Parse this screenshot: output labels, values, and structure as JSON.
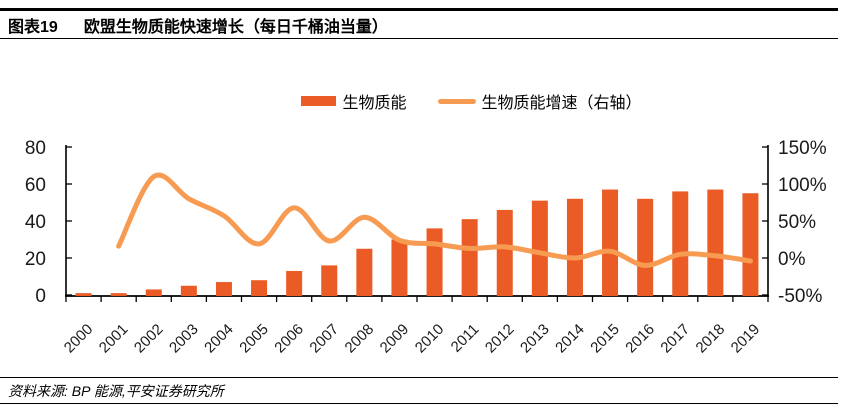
{
  "header": {
    "tag": "图表19",
    "title": "欧盟生物质能快速增长（每日千桶油当量）"
  },
  "legend": {
    "items": [
      {
        "label": "生物质能",
        "swatch": "bar-swatch"
      },
      {
        "label": "生物质能增速（右轴）",
        "swatch": "line-swatch"
      }
    ]
  },
  "colors": {
    "bar": "#EA5B25",
    "line": "#F89B52",
    "axis": "#000000",
    "text": "#1A1A1A"
  },
  "chart_data": {
    "type": "bar",
    "title": "欧盟生物质能快速增长（每日千桶油当量）",
    "categories": [
      "2000",
      "2001",
      "2002",
      "2003",
      "2004",
      "2005",
      "2006",
      "2007",
      "2008",
      "2009",
      "2010",
      "2011",
      "2012",
      "2013",
      "2014",
      "2015",
      "2016",
      "2017",
      "2018",
      "2019"
    ],
    "series": [
      {
        "name": "生物质能",
        "type": "bar",
        "axis": "left",
        "values": [
          1,
          1,
          3,
          5,
          7,
          8,
          13,
          16,
          25,
          30,
          36,
          41,
          46,
          51,
          52,
          57,
          52,
          56,
          57,
          55
        ]
      },
      {
        "name": "生物质能增速（右轴）",
        "type": "line",
        "axis": "right",
        "unit": "%",
        "values": [
          null,
          16,
          110,
          80,
          57,
          19,
          68,
          23,
          55,
          24,
          19,
          13,
          15,
          7,
          0,
          9,
          -10,
          5,
          3,
          -4
        ]
      }
    ],
    "left_axis": {
      "range": [
        0,
        80
      ],
      "ticks": [
        0,
        20,
        40,
        60,
        80
      ]
    },
    "right_axis": {
      "range": [
        -50,
        150
      ],
      "ticks": [
        -50,
        0,
        50,
        100,
        150
      ],
      "tick_labels": [
        "-50%",
        "0%",
        "50%",
        "100%",
        "150%"
      ]
    },
    "grid": false,
    "legend_position": "top",
    "x_label_rotation": -45
  },
  "source": {
    "text": "资料来源: BP 能源,平安证券研究所"
  }
}
